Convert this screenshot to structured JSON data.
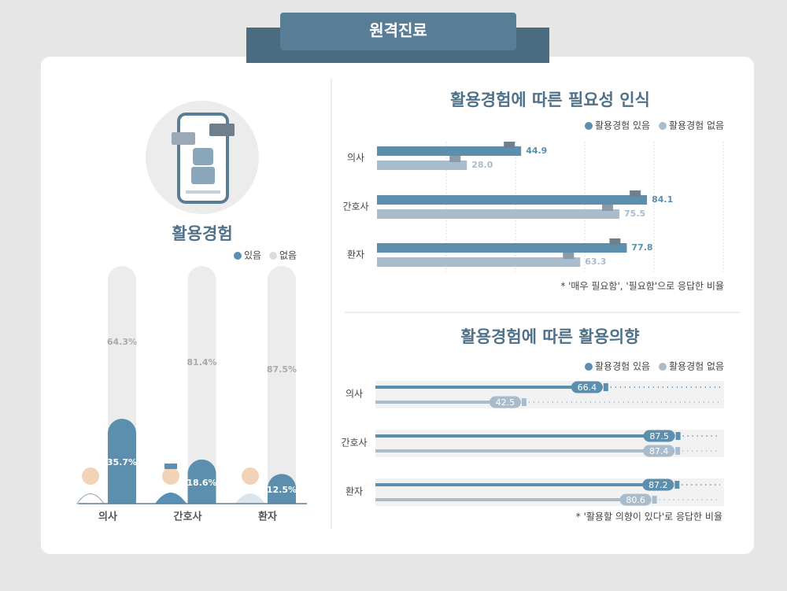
{
  "header": {
    "title": "원격진료"
  },
  "chart_data": [
    {
      "type": "stacked-column",
      "title": "활용경험",
      "categories": [
        "의사",
        "간호사",
        "환자"
      ],
      "series": [
        {
          "name": "있음",
          "color": "#5b8fad",
          "values": [
            35.7,
            18.6,
            12.5
          ],
          "value_labels": [
            "35.7%",
            "18.6%",
            "12.5%"
          ]
        },
        {
          "name": "없음",
          "color": "#ececec",
          "values": [
            64.3,
            81.4,
            87.5
          ],
          "value_labels": [
            "64.3%",
            "81.4%",
            "87.5%"
          ]
        }
      ],
      "ylim": [
        0,
        100
      ]
    },
    {
      "type": "bar",
      "title": "활용경험에 따른 필요성 인식",
      "categories": [
        "의사",
        "간호사",
        "환자"
      ],
      "series": [
        {
          "name": "활용경험 있음",
          "color": "#5b8fad",
          "values": [
            44.9,
            84.1,
            77.8
          ],
          "value_labels": [
            "44.9",
            "84.1",
            "77.8"
          ]
        },
        {
          "name": "활용경험 없음",
          "color": "#a9bccb",
          "values": [
            28,
            75.5,
            63.3
          ],
          "value_labels": [
            "28.0",
            "75.5",
            "63.3"
          ]
        }
      ],
      "xlim": [
        0,
        100
      ],
      "note": "* '매우 필요함', '필요함'으로 응답한 비율"
    },
    {
      "type": "lollipop",
      "title": "활용경험에 따른 활용의향",
      "categories": [
        "의사",
        "간호사",
        "환자"
      ],
      "series": [
        {
          "name": "활용경험 있음",
          "color": "#5b8fad",
          "values": [
            66.4,
            87.5,
            87.2
          ],
          "value_labels": [
            "66.4",
            "87.5",
            "87.2"
          ]
        },
        {
          "name": "활용경험 없음",
          "color": "#a9bccb",
          "values": [
            42.5,
            87.4,
            80.6
          ],
          "value_labels": [
            "42.5",
            "87.4",
            "80.6"
          ]
        }
      ],
      "xlim": [
        0,
        100
      ],
      "note": "* '활용할 의향이 있다'로 응답한 비율"
    }
  ]
}
